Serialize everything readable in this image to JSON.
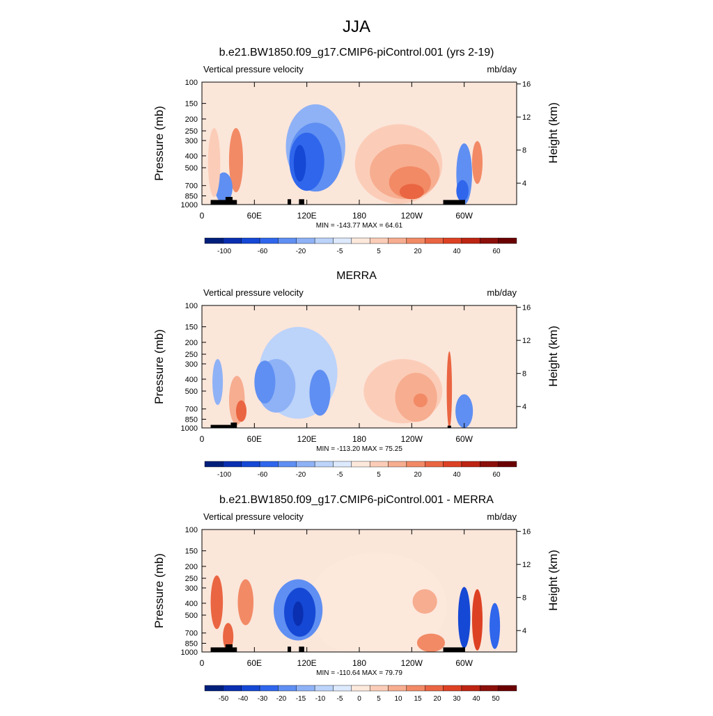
{
  "figure_title": "JJA",
  "chart_data": [
    {
      "type": "heatmap",
      "title": "b.e21.BW1850.f09_g17.CMIP6-piControl.001 (yrs 2-19)",
      "left_label": "Vertical pressure velocity",
      "right_label": "mb/day",
      "ylabel": "Pressure (mb)",
      "ylabel_right": "Height (km)",
      "x_ticks": [
        "0",
        "60E",
        "120E",
        "180",
        "120W",
        "60W"
      ],
      "y_ticks": [
        "100",
        "150",
        "200",
        "250",
        "300",
        "400",
        "500",
        "700",
        "850",
        "1000"
      ],
      "y_right_ticks": [
        "16",
        "12",
        "8",
        "4"
      ],
      "stats": "MIN = -143.77  MAX =  64.61",
      "colorbar_labels": [
        "-100",
        "-60",
        "-20",
        "-5",
        "5",
        "20",
        "40",
        "60"
      ],
      "colorbar_colors": [
        "#001f7a",
        "#0a2fb0",
        "#1548d4",
        "#2f66ec",
        "#5f8ff2",
        "#8fb2f6",
        "#bcd3fa",
        "#dde9fd",
        "#fde8dc",
        "#fbcdb8",
        "#f7ad90",
        "#f28a66",
        "#ea6542",
        "#dd4123",
        "#bd2412",
        "#8b0f0a",
        "#6a0000"
      ],
      "blobs": [
        {
          "lon": 130,
          "lev": 7.6,
          "rx": 34,
          "ry": 5.5,
          "c": "#8fb2f6"
        },
        {
          "lon": 130,
          "lev": 6.2,
          "rx": 30,
          "ry": 4.5,
          "c": "#5f8ff2"
        },
        {
          "lon": 120,
          "lev": 5.6,
          "rx": 20,
          "ry": 3.8,
          "c": "#2f66ec"
        },
        {
          "lon": 112,
          "lev": 5.4,
          "rx": 7,
          "ry": 2.4,
          "c": "#1548d4"
        },
        {
          "lon": 225,
          "lev": 5.3,
          "rx": 50,
          "ry": 5.2,
          "c": "#fbcdb8"
        },
        {
          "lon": 232,
          "lev": 4.3,
          "rx": 40,
          "ry": 3.6,
          "c": "#f7ad90"
        },
        {
          "lon": 238,
          "lev": 2.9,
          "rx": 24,
          "ry": 2.1,
          "c": "#f28a66"
        },
        {
          "lon": 240,
          "lev": 1.7,
          "rx": 14,
          "ry": 1.0,
          "c": "#ea6542"
        },
        {
          "lon": 300,
          "lev": 4.0,
          "rx": 9,
          "ry": 4.0,
          "c": "#5f8ff2"
        },
        {
          "lon": 298,
          "lev": 1.8,
          "rx": 7,
          "ry": 1.4,
          "c": "#2f66ec"
        },
        {
          "lon": 315,
          "lev": 5.5,
          "rx": 6,
          "ry": 2.8,
          "c": "#f28a66"
        },
        {
          "lon": 39,
          "lev": 5.8,
          "rx": 8,
          "ry": 4.2,
          "c": "#f28a66"
        },
        {
          "lon": 25,
          "lev": 2.2,
          "rx": 10,
          "ry": 2.0,
          "c": "#5f8ff2"
        },
        {
          "lon": 14,
          "lev": 5.5,
          "rx": 7,
          "ry": 4.5,
          "c": "#fbcdb8"
        }
      ],
      "topo": [
        {
          "lon0": 10,
          "lon1": 40,
          "lev": 0.6
        },
        {
          "lon0": 27,
          "lon1": 35,
          "lev": 1.0
        },
        {
          "lon0": 98,
          "lon1": 102,
          "lev": 0.7
        },
        {
          "lon0": 111,
          "lon1": 117,
          "lev": 0.7
        },
        {
          "lon0": 276,
          "lon1": 301,
          "lev": 0.6
        }
      ]
    },
    {
      "type": "heatmap",
      "title": "MERRA",
      "left_label": "Vertical pressure velocity",
      "right_label": "mb/day",
      "ylabel": "Pressure (mb)",
      "ylabel_right": "Height (km)",
      "x_ticks": [
        "0",
        "60E",
        "120E",
        "180",
        "120W",
        "60W"
      ],
      "y_ticks": [
        "100",
        "150",
        "200",
        "250",
        "300",
        "400",
        "500",
        "700",
        "850",
        "1000"
      ],
      "y_right_ticks": [
        "16",
        "12",
        "8",
        "4"
      ],
      "stats": "MIN = -113.20  MAX =  75.25",
      "colorbar_labels": [
        "-100",
        "-60",
        "-20",
        "-5",
        "5",
        "20",
        "40",
        "60"
      ],
      "colorbar_colors": [
        "#001f7a",
        "#0a2fb0",
        "#1548d4",
        "#2f66ec",
        "#5f8ff2",
        "#8fb2f6",
        "#bcd3fa",
        "#dde9fd",
        "#fde8dc",
        "#fbcdb8",
        "#f7ad90",
        "#f28a66",
        "#ea6542",
        "#dd4123",
        "#bd2412",
        "#8b0f0a",
        "#6a0000"
      ],
      "blobs": [
        {
          "lon": 110,
          "lev": 7.2,
          "rx": 45,
          "ry": 6.0,
          "c": "#bcd3fa"
        },
        {
          "lon": 85,
          "lev": 5.5,
          "rx": 22,
          "ry": 3.5,
          "c": "#8fb2f6"
        },
        {
          "lon": 72,
          "lev": 6.0,
          "rx": 12,
          "ry": 2.8,
          "c": "#5f8ff2"
        },
        {
          "lon": 135,
          "lev": 4.6,
          "rx": 12,
          "ry": 3.0,
          "c": "#5f8ff2"
        },
        {
          "lon": 230,
          "lev": 4.8,
          "rx": 45,
          "ry": 4.2,
          "c": "#fbcdb8"
        },
        {
          "lon": 245,
          "lev": 4.0,
          "rx": 24,
          "ry": 3.2,
          "c": "#f7ad90"
        },
        {
          "lon": 250,
          "lev": 3.6,
          "rx": 8,
          "ry": 0.9,
          "c": "#f28a66"
        },
        {
          "lon": 300,
          "lev": 2.2,
          "rx": 10,
          "ry": 2.2,
          "c": "#5f8ff2"
        },
        {
          "lon": 283,
          "lev": 5.0,
          "rx": 3,
          "ry": 5.0,
          "c": "#ea6542"
        },
        {
          "lon": 40,
          "lev": 3.6,
          "rx": 9,
          "ry": 3.2,
          "c": "#f7ad90"
        },
        {
          "lon": 45,
          "lev": 2.2,
          "rx": 6,
          "ry": 1.4,
          "c": "#ea6542"
        },
        {
          "lon": 18,
          "lev": 6.0,
          "rx": 6,
          "ry": 3.0,
          "c": "#8fb2f6"
        }
      ],
      "topo": [
        {
          "lon0": 10,
          "lon1": 33,
          "lev": 0.4
        },
        {
          "lon0": 33,
          "lon1": 40,
          "lev": 0.7
        },
        {
          "lon0": 281,
          "lon1": 285,
          "lev": 0.3
        }
      ]
    },
    {
      "type": "heatmap",
      "title": "b.e21.BW1850.f09_g17.CMIP6-piControl.001 - MERRA",
      "left_label": "Vertical pressure velocity",
      "right_label": "mb/day",
      "ylabel": "Pressure (mb)",
      "ylabel_right": "Height (km)",
      "x_ticks": [
        "0",
        "60E",
        "120E",
        "180",
        "120W",
        "60W"
      ],
      "y_ticks": [
        "100",
        "150",
        "200",
        "250",
        "300",
        "400",
        "500",
        "700",
        "850",
        "1000"
      ],
      "y_right_ticks": [
        "16",
        "12",
        "8",
        "4"
      ],
      "stats": "MIN = -110.64  MAX =  79.79",
      "colorbar_labels": [
        "-50",
        "-40",
        "-30",
        "-20",
        "-15",
        "-10",
        "-5",
        "0",
        "5",
        "10",
        "15",
        "20",
        "30",
        "40",
        "50"
      ],
      "colorbar_colors": [
        "#001f7a",
        "#0a2fb0",
        "#1548d4",
        "#2f66ec",
        "#5f8ff2",
        "#8fb2f6",
        "#bcd3fa",
        "#dde9fd",
        "#fde8dc",
        "#fbcdb8",
        "#f7ad90",
        "#f28a66",
        "#ea6542",
        "#dd4123",
        "#bd2412",
        "#8b0f0a",
        "#6a0000"
      ],
      "blobs": [
        {
          "lon": 200,
          "lev": 6.0,
          "rx": 80,
          "ry": 7.0,
          "c": "#fde8dc"
        },
        {
          "lon": 110,
          "lev": 5.5,
          "rx": 28,
          "ry": 4.0,
          "c": "#5f8ff2"
        },
        {
          "lon": 112,
          "lev": 5.2,
          "rx": 18,
          "ry": 3.2,
          "c": "#1548d4"
        },
        {
          "lon": 110,
          "lev": 5.0,
          "rx": 6,
          "ry": 1.6,
          "c": "#0a2fb0"
        },
        {
          "lon": 17,
          "lev": 6.5,
          "rx": 7,
          "ry": 3.5,
          "c": "#ea6542"
        },
        {
          "lon": 50,
          "lev": 6.5,
          "rx": 9,
          "ry": 3.0,
          "c": "#f28a66"
        },
        {
          "lon": 300,
          "lev": 4.5,
          "rx": 7,
          "ry": 4.0,
          "c": "#1548d4"
        },
        {
          "lon": 315,
          "lev": 4.2,
          "rx": 6,
          "ry": 4.0,
          "c": "#dd4123"
        },
        {
          "lon": 335,
          "lev": 3.4,
          "rx": 6,
          "ry": 3.0,
          "c": "#2f66ec"
        },
        {
          "lon": 262,
          "lev": 1.2,
          "rx": 16,
          "ry": 1.2,
          "c": "#f28a66"
        },
        {
          "lon": 255,
          "lev": 6.6,
          "rx": 14,
          "ry": 1.6,
          "c": "#f7ad90"
        },
        {
          "lon": 30,
          "lev": 2.0,
          "rx": 6,
          "ry": 1.8,
          "c": "#ea6542"
        }
      ],
      "topo": [
        {
          "lon0": 10,
          "lon1": 40,
          "lev": 0.6
        },
        {
          "lon0": 27,
          "lon1": 35,
          "lev": 1.0
        },
        {
          "lon0": 98,
          "lon1": 102,
          "lev": 0.7
        },
        {
          "lon0": 111,
          "lon1": 117,
          "lev": 0.7
        },
        {
          "lon0": 276,
          "lon1": 301,
          "lev": 0.6
        }
      ]
    }
  ]
}
